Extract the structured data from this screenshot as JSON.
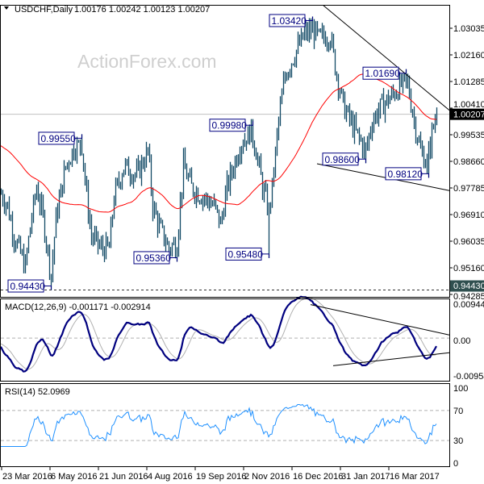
{
  "header": {
    "symbol": "USDCHF,Daily",
    "ohlc": "1.00176 1.00242 1.00123 1.00207"
  },
  "watermark": "ActionForex.com",
  "colors": {
    "bars": "#124a66",
    "ma": "#ff0000",
    "macd": "#00007f",
    "signal": "#b0b0b0",
    "rsi": "#1e90ff",
    "label_border": "#000080"
  },
  "chart_data": [
    {
      "type": "ohlc-bar",
      "title": "USDCHF,Daily",
      "price_axis_ticks": [
        "1.03035",
        "1.02160",
        "1.01285",
        "1.00410",
        "0.99535",
        "0.98660",
        "0.97785",
        "0.96910",
        "0.96035",
        "0.95160",
        "0.94285"
      ],
      "ylim": [
        0.94285,
        1.0391
      ],
      "last_price": "1.00207",
      "support_line_label": "0.94430",
      "support_line_value": 0.9443,
      "x_tick_labels": [
        "23 Mar 2016",
        "6 May 2016",
        "21 Jun 2016",
        "4 Aug 2016",
        "19 Sep 2016",
        "2 Nov 2016",
        "16 Dec 2016",
        "31 Jan 2017",
        "16 Mar 2017"
      ],
      "bar_count": 271,
      "close_path": [
        [
          0,
          0.976
        ],
        [
          4,
          0.972
        ],
        [
          8,
          0.962
        ],
        [
          15,
          0.952
        ],
        [
          18,
          0.965
        ],
        [
          22,
          0.978
        ],
        [
          26,
          0.968
        ],
        [
          31,
          0.949
        ],
        [
          34,
          0.968
        ],
        [
          40,
          0.985
        ],
        [
          46,
          0.992
        ],
        [
          50,
          0.992
        ],
        [
          53,
          0.975
        ],
        [
          56,
          0.962
        ],
        [
          62,
          0.958
        ],
        [
          67,
          0.958
        ],
        [
          70,
          0.975
        ],
        [
          76,
          0.985
        ],
        [
          84,
          0.982
        ],
        [
          91,
          0.99
        ],
        [
          94,
          0.972
        ],
        [
          98,
          0.965
        ],
        [
          104,
          0.958
        ],
        [
          109,
          0.96
        ],
        [
          113,
          0.985
        ],
        [
          118,
          0.978
        ],
        [
          125,
          0.975
        ],
        [
          132,
          0.972
        ],
        [
          136,
          0.966
        ],
        [
          140,
          0.978
        ],
        [
          148,
          0.992
        ],
        [
          155,
          0.997
        ],
        [
          158,
          0.99
        ],
        [
          162,
          0.978
        ],
        [
          166,
          0.97
        ],
        [
          168,
          0.978
        ],
        [
          172,
          1.0
        ],
        [
          176,
          1.015
        ],
        [
          182,
          1.022
        ],
        [
          188,
          1.028
        ],
        [
          193,
          1.03
        ],
        [
          197,
          1.027
        ],
        [
          204,
          1.028
        ],
        [
          207,
          1.018
        ],
        [
          212,
          1.005
        ],
        [
          218,
          0.998
        ],
        [
          222,
          0.994
        ],
        [
          226,
          0.99
        ],
        [
          230,
          1.0
        ],
        [
          236,
          1.005
        ],
        [
          242,
          1.008
        ],
        [
          248,
          1.012
        ],
        [
          252,
          1.012
        ],
        [
          256,
          1.0
        ],
        [
          260,
          0.99
        ],
        [
          264,
          0.986
        ],
        [
          267,
          0.996
        ],
        [
          270,
          1.00207
        ]
      ],
      "annotations": [
        {
          "bar": 193,
          "price": 1.0342,
          "kind": "high",
          "text": "1.03420"
        },
        {
          "bar": 251,
          "price": 1.0169,
          "kind": "high",
          "text": "1.01690"
        },
        {
          "bar": 156,
          "price": 0.9998,
          "kind": "high",
          "text": "0.99980"
        },
        {
          "bar": 50,
          "price": 0.9955,
          "kind": "high",
          "text": "0.99550"
        },
        {
          "bar": 226,
          "price": 0.986,
          "kind": "low",
          "text": "0.98600"
        },
        {
          "bar": 265,
          "price": 0.9812,
          "kind": "low",
          "text": "0.98120"
        },
        {
          "bar": 109,
          "price": 0.9536,
          "kind": "low",
          "text": "0.95360"
        },
        {
          "bar": 166,
          "price": 0.9548,
          "kind": "low",
          "text": "0.95480"
        },
        {
          "bar": 31,
          "price": 0.9443,
          "kind": "low",
          "text": "0.94430"
        }
      ],
      "trendlines": [
        {
          "name": "falling-resistance",
          "from": [
            200,
            1.0378
          ],
          "to": [
            278,
            1.0034
          ]
        },
        {
          "name": "falling-support",
          "from": [
            196,
            0.9858
          ],
          "to": [
            278,
            0.977
          ]
        }
      ],
      "moving_average_period": 55
    },
    {
      "type": "line",
      "title": "MACD(12,26,9) -0.001171 -0.002914",
      "label": "MACD(12,26,9) -0.001171 -0.002914",
      "ticks": [
        "0.009446",
        "0.00",
        "-0.009588"
      ],
      "ylim": [
        -0.009588,
        0.009446
      ],
      "series": [
        {
          "name": "MACD",
          "last": -0.001171
        },
        {
          "name": "Signal",
          "last": -0.002914
        }
      ],
      "trendlines": [
        {
          "name": "macd-upper",
          "from": [
            192,
            0.0085
          ],
          "to": [
            278,
            0.0008
          ]
        },
        {
          "name": "macd-lower",
          "from": [
            206,
            -0.007
          ],
          "to": [
            278,
            -0.0037
          ]
        }
      ]
    },
    {
      "type": "line",
      "title": "RSI(14) 52.0969",
      "label": "RSI(14) 52.0969",
      "ticks": [
        "100",
        "70",
        "30",
        "0"
      ],
      "ylim": [
        0,
        100
      ],
      "levels": [
        70,
        30
      ],
      "last": 52.0969
    }
  ]
}
